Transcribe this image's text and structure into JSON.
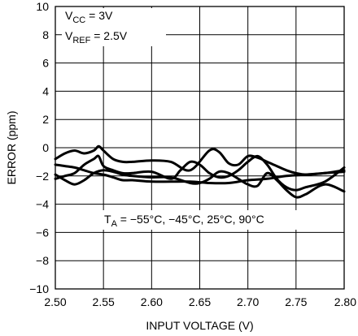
{
  "chart_data": {
    "type": "line",
    "xlabel": "INPUT VOLTAGE (V)",
    "ylabel": "ERROR (ppm)",
    "xlim": [
      2.5,
      2.8
    ],
    "ylim": [
      -10,
      10
    ],
    "xticks": [
      "2.50",
      "2.55",
      "2.60",
      "2.65",
      "2.70",
      "2.75",
      "2.80"
    ],
    "yticks": [
      "10",
      "8",
      "6",
      "4",
      "2",
      "0",
      "−2",
      "−4",
      "−6",
      "−8",
      "−10"
    ],
    "grid": true,
    "annotations": {
      "conditions": [
        {
          "base": "V",
          "sub": "CC",
          "rest": " = 3V"
        },
        {
          "base": "V",
          "sub": "REF",
          "rest": " = 2.5V"
        }
      ],
      "temperature": {
        "base": "T",
        "sub": "A",
        "rest": " = −55°C, −45°C, 25°C, 90°C"
      }
    },
    "series": [
      {
        "x": [
          2.5,
          2.51,
          2.52,
          2.53,
          2.54,
          2.545,
          2.55,
          2.56,
          2.57,
          2.58,
          2.6,
          2.62,
          2.64,
          2.66,
          2.67,
          2.68,
          2.69,
          2.7,
          2.71,
          2.72,
          2.73,
          2.74,
          2.75,
          2.76,
          2.78,
          2.8
        ],
        "values": [
          -0.8,
          -0.4,
          -0.2,
          -0.4,
          -0.2,
          0.1,
          -0.2,
          -0.8,
          -1.0,
          -1.0,
          -0.9,
          -1.0,
          -1.6,
          -0.2,
          -0.3,
          -1.1,
          -1.2,
          -0.6,
          -0.7,
          -1.0,
          -1.3,
          -1.6,
          -1.8,
          -1.9,
          -1.8,
          -1.6
        ]
      },
      {
        "x": [
          2.5,
          2.51,
          2.52,
          2.53,
          2.54,
          2.545,
          2.55,
          2.56,
          2.57,
          2.58,
          2.6,
          2.62,
          2.63,
          2.64,
          2.65,
          2.66,
          2.67,
          2.68,
          2.69,
          2.7,
          2.71,
          2.72,
          2.73,
          2.74,
          2.75,
          2.76,
          2.78,
          2.8
        ],
        "values": [
          -2.2,
          -2.0,
          -1.8,
          -1.2,
          -0.8,
          -0.6,
          -1.3,
          -1.6,
          -1.8,
          -1.8,
          -1.7,
          -2.2,
          -1.6,
          -1.0,
          -1.2,
          -1.8,
          -2.1,
          -2.0,
          -1.6,
          -1.0,
          -0.6,
          -1.2,
          -2.2,
          -2.8,
          -3.0,
          -2.8,
          -2.4,
          -1.4
        ]
      },
      {
        "x": [
          2.5,
          2.51,
          2.52,
          2.53,
          2.54,
          2.55,
          2.56,
          2.57,
          2.58,
          2.6,
          2.62,
          2.64,
          2.65,
          2.66,
          2.67,
          2.68,
          2.69,
          2.7,
          2.71,
          2.72,
          2.73,
          2.74,
          2.75,
          2.76,
          2.78,
          2.8
        ],
        "values": [
          -1.9,
          -2.3,
          -2.6,
          -2.3,
          -1.8,
          -1.6,
          -1.7,
          -1.9,
          -2.0,
          -2.1,
          -2.1,
          -2.5,
          -2.5,
          -2.2,
          -1.7,
          -1.8,
          -2.2,
          -2.6,
          -2.7,
          -1.8,
          -2.3,
          -3.0,
          -3.5,
          -3.3,
          -2.6,
          -3.1
        ]
      },
      {
        "x": [
          2.5,
          2.51,
          2.52,
          2.53,
          2.54,
          2.55,
          2.56,
          2.57,
          2.58,
          2.6,
          2.62,
          2.64,
          2.66,
          2.68,
          2.7,
          2.72,
          2.74,
          2.76,
          2.78,
          2.8
        ],
        "values": [
          -1.2,
          -1.3,
          -1.4,
          -1.6,
          -1.8,
          -1.9,
          -2.1,
          -2.3,
          -2.3,
          -2.4,
          -2.4,
          -2.4,
          -2.5,
          -2.5,
          -2.3,
          -2.2,
          -2.0,
          -1.9,
          -1.8,
          -1.7
        ]
      }
    ]
  }
}
